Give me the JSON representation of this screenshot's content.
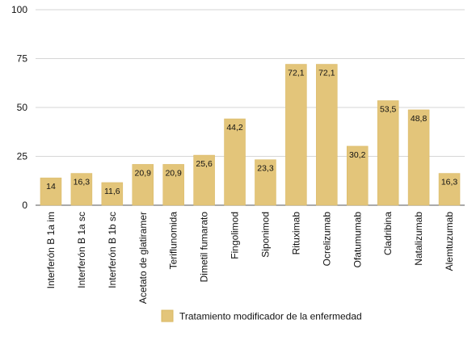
{
  "colors": {
    "bar_fill": "#E3C57A",
    "bar_stroke": "#D9B862",
    "grid": "#D6D6D6",
    "axis": "#555555",
    "text": "#111111"
  },
  "chart_data": {
    "type": "bar",
    "categories": [
      "Interferón B 1a im",
      "Interferón B 1a sc",
      "Interferón B 1b sc",
      "Acetato de glatiramer",
      "Teriflunomida",
      "Dimetil fumarato",
      "Fingolimod",
      "Siponimod",
      "Rituximab",
      "Ocrelizumab",
      "Ofatumumab",
      "Cladribina",
      "Natalizumab",
      "Alemtuzumab"
    ],
    "series": [
      {
        "name": "Tratamiento modificador de la enfermedad",
        "values": [
          14,
          16.3,
          11.6,
          20.9,
          20.9,
          25.6,
          44.2,
          23.3,
          72.1,
          72.1,
          30.2,
          53.5,
          48.8,
          16.3
        ],
        "labels": [
          "14",
          "16,3",
          "11,6",
          "20,9",
          "20,9",
          "25,6",
          "44,2",
          "23,3",
          "72,1",
          "72,1",
          "30,2",
          "53,5",
          "48,8",
          "16,3"
        ]
      }
    ],
    "yticks": [
      0,
      25,
      50,
      75,
      100
    ],
    "ytick_labels": [
      "0",
      "25",
      "50",
      "75",
      "100"
    ],
    "ylim": [
      0,
      100
    ],
    "grid": true,
    "legend_position": "bottom"
  }
}
